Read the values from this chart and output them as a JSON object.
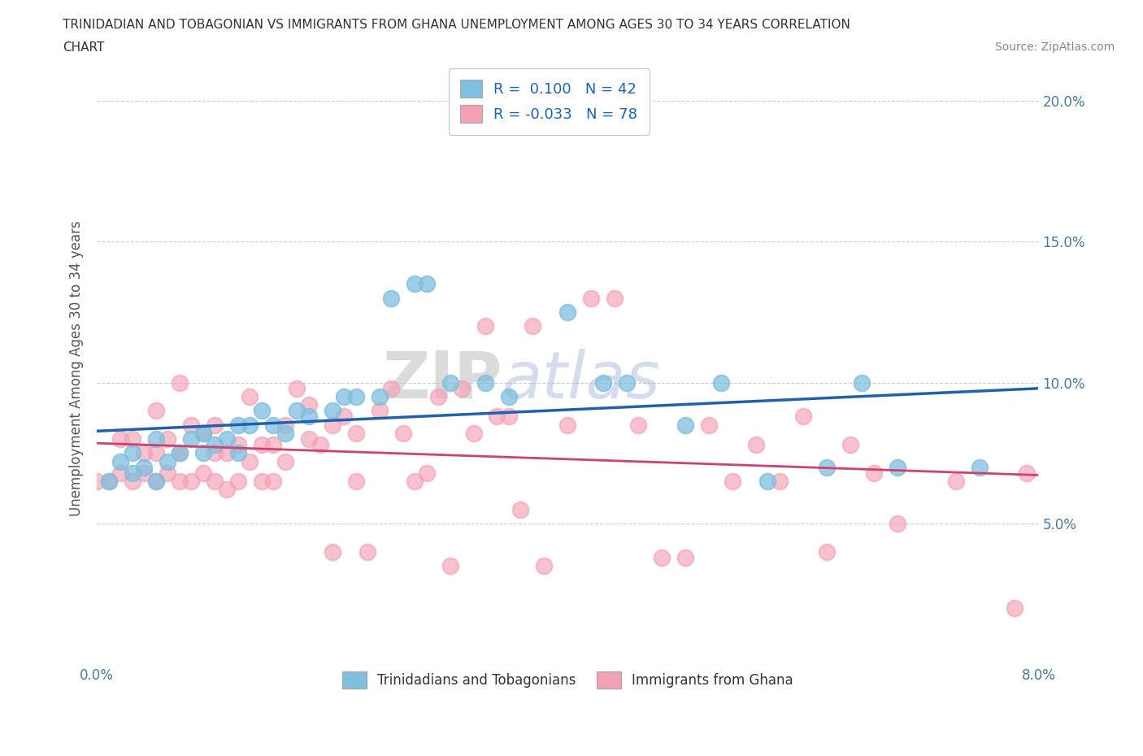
{
  "title_line1": "TRINIDADIAN AND TOBAGONIAN VS IMMIGRANTS FROM GHANA UNEMPLOYMENT AMONG AGES 30 TO 34 YEARS CORRELATION",
  "title_line2": "CHART",
  "source_text": "Source: ZipAtlas.com",
  "ylabel": "Unemployment Among Ages 30 to 34 years",
  "xlim": [
    0.0,
    0.08
  ],
  "ylim": [
    0.0,
    0.21
  ],
  "blue_color": "#7fbfdf",
  "pink_color": "#f4a0b5",
  "blue_line_color": "#2060b0",
  "pink_line_color": "#d04070",
  "legend_R1": "0.100",
  "legend_N1": "42",
  "legend_R2": "-0.033",
  "legend_N2": "78",
  "legend_label1": "Trinidadians and Tobagonians",
  "legend_label2": "Immigrants from Ghana",
  "watermark_zip": "ZIP",
  "watermark_atlas": "atlas",
  "blue_scatter_x": [
    0.001,
    0.002,
    0.003,
    0.003,
    0.004,
    0.005,
    0.005,
    0.006,
    0.007,
    0.008,
    0.009,
    0.009,
    0.01,
    0.011,
    0.012,
    0.012,
    0.013,
    0.014,
    0.015,
    0.016,
    0.017,
    0.018,
    0.02,
    0.021,
    0.022,
    0.024,
    0.025,
    0.027,
    0.028,
    0.03,
    0.033,
    0.035,
    0.04,
    0.043,
    0.045,
    0.05,
    0.053,
    0.057,
    0.062,
    0.065,
    0.068,
    0.075
  ],
  "blue_scatter_y": [
    0.065,
    0.072,
    0.068,
    0.075,
    0.07,
    0.065,
    0.08,
    0.072,
    0.075,
    0.08,
    0.075,
    0.082,
    0.078,
    0.08,
    0.075,
    0.085,
    0.085,
    0.09,
    0.085,
    0.082,
    0.09,
    0.088,
    0.09,
    0.095,
    0.095,
    0.095,
    0.13,
    0.135,
    0.135,
    0.1,
    0.1,
    0.095,
    0.125,
    0.1,
    0.1,
    0.085,
    0.1,
    0.065,
    0.07,
    0.1,
    0.07,
    0.07
  ],
  "pink_scatter_x": [
    0.0,
    0.001,
    0.002,
    0.002,
    0.003,
    0.003,
    0.004,
    0.004,
    0.005,
    0.005,
    0.005,
    0.006,
    0.006,
    0.007,
    0.007,
    0.007,
    0.008,
    0.008,
    0.009,
    0.009,
    0.01,
    0.01,
    0.01,
    0.011,
    0.011,
    0.012,
    0.012,
    0.013,
    0.013,
    0.014,
    0.014,
    0.015,
    0.015,
    0.016,
    0.016,
    0.017,
    0.018,
    0.018,
    0.019,
    0.02,
    0.02,
    0.021,
    0.022,
    0.022,
    0.023,
    0.024,
    0.025,
    0.026,
    0.027,
    0.028,
    0.029,
    0.03,
    0.031,
    0.032,
    0.033,
    0.034,
    0.035,
    0.036,
    0.037,
    0.038,
    0.04,
    0.042,
    0.044,
    0.046,
    0.048,
    0.05,
    0.052,
    0.054,
    0.056,
    0.058,
    0.06,
    0.062,
    0.064,
    0.066,
    0.068,
    0.073,
    0.078,
    0.079
  ],
  "pink_scatter_y": [
    0.065,
    0.065,
    0.068,
    0.08,
    0.065,
    0.08,
    0.068,
    0.075,
    0.065,
    0.075,
    0.09,
    0.068,
    0.08,
    0.065,
    0.075,
    0.1,
    0.065,
    0.085,
    0.068,
    0.082,
    0.065,
    0.075,
    0.085,
    0.062,
    0.075,
    0.065,
    0.078,
    0.072,
    0.095,
    0.065,
    0.078,
    0.065,
    0.078,
    0.072,
    0.085,
    0.098,
    0.092,
    0.08,
    0.078,
    0.04,
    0.085,
    0.088,
    0.065,
    0.082,
    0.04,
    0.09,
    0.098,
    0.082,
    0.065,
    0.068,
    0.095,
    0.035,
    0.098,
    0.082,
    0.12,
    0.088,
    0.088,
    0.055,
    0.12,
    0.035,
    0.085,
    0.13,
    0.13,
    0.085,
    0.038,
    0.038,
    0.085,
    0.065,
    0.078,
    0.065,
    0.088,
    0.04,
    0.078,
    0.068,
    0.05,
    0.065,
    0.02,
    0.068
  ]
}
